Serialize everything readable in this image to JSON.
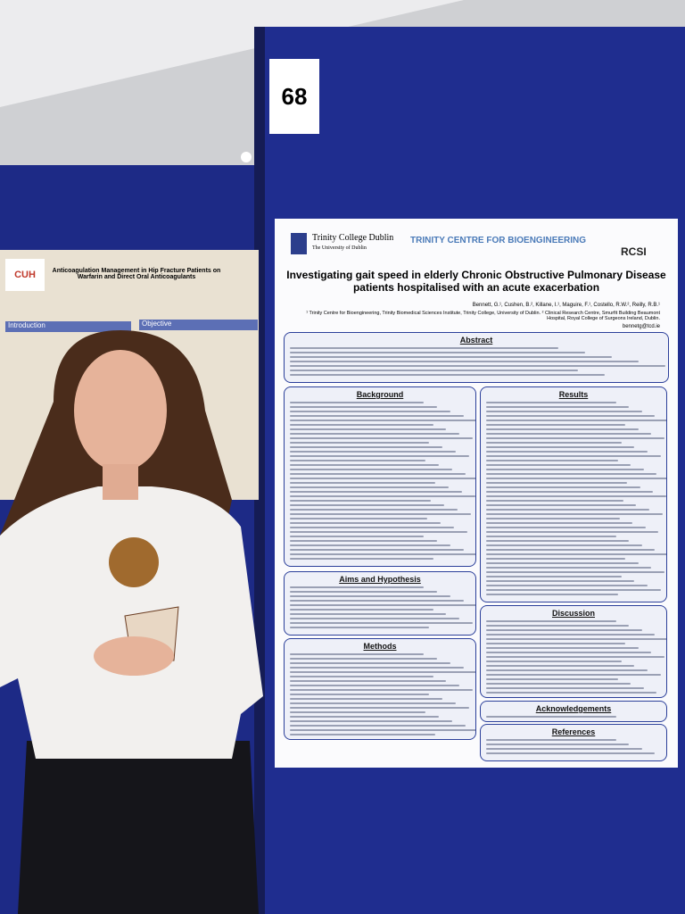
{
  "board_number": "68",
  "left_poster": {
    "logo": "CUH",
    "title": "Anticoagulation Management in Hip Fracture Patients on Warfarin and Direct Oral Anticoagulants",
    "sections": [
      "Introduction",
      "Objective"
    ]
  },
  "poster": {
    "institution": "Trinity College Dublin",
    "institution_subtitle": "The University of Dublin",
    "centre": "TRINITY CENTRE FOR BIOENGINEERING",
    "partner": "RCSI",
    "title": "Investigating gait speed in elderly Chronic Obstructive Pulmonary Disease patients hospitalised with an acute exacerbation",
    "authors": "Bennett, G.¹, Cushen, B.², Killane, I.¹, Maguire, F.¹, Costello, R.W.², Reilly, R.B.¹",
    "affiliations": "¹ Trinity Centre for Bioengineering, Trinity Biomedical Sciences Institute, Trinity College, University of Dublin. ² Clinical Research Centre, Smurfit Building Beaumont Hospital, Royal College of Surgeons Ireland, Dublin.",
    "email": "bennetg@tcd.ie",
    "sections": {
      "abstract": "Abstract",
      "background": "Background",
      "results": "Results",
      "aims": "Aims and Hypothesis",
      "methods": "Methods",
      "discussion": "Discussion",
      "acknowledgements": "Acknowledgements",
      "references": "References"
    }
  }
}
